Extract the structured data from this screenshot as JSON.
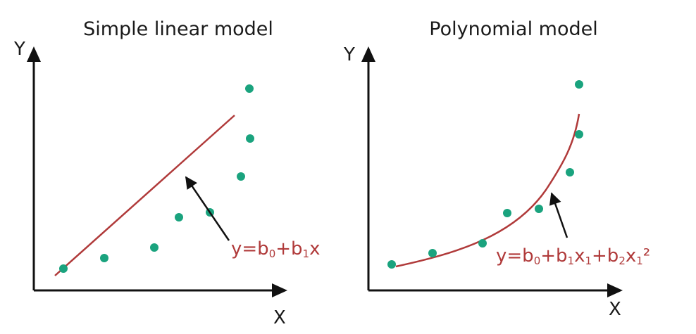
{
  "colors": {
    "axis": "#111111",
    "fit_line": "#b03a3a",
    "points": "#1aa37e",
    "equation": "#b03a3a"
  },
  "panels": [
    {
      "title": "Simple linear model",
      "x_label": "X",
      "y_label": "Y",
      "equation": [
        {
          "t": "y=b",
          "sub": false
        },
        {
          "t": "0",
          "sub": true
        },
        {
          "t": "+b",
          "sub": false
        },
        {
          "t": "1",
          "sub": true
        },
        {
          "t": "x",
          "sub": false
        }
      ]
    },
    {
      "title": "Polynomial model",
      "x_label": "X",
      "y_label": "Y",
      "equation": [
        {
          "t": "y=b",
          "sub": false
        },
        {
          "t": "0",
          "sub": true
        },
        {
          "t": "+b",
          "sub": false
        },
        {
          "t": "1",
          "sub": true
        },
        {
          "t": "x",
          "sub": false
        },
        {
          "t": "1",
          "sub": true
        },
        {
          "t": "+b",
          "sub": false
        },
        {
          "t": "2",
          "sub": true
        },
        {
          "t": "x",
          "sub": false
        },
        {
          "t": "1",
          "sub": true
        },
        {
          "t": "²",
          "sub": false
        }
      ]
    }
  ]
}
